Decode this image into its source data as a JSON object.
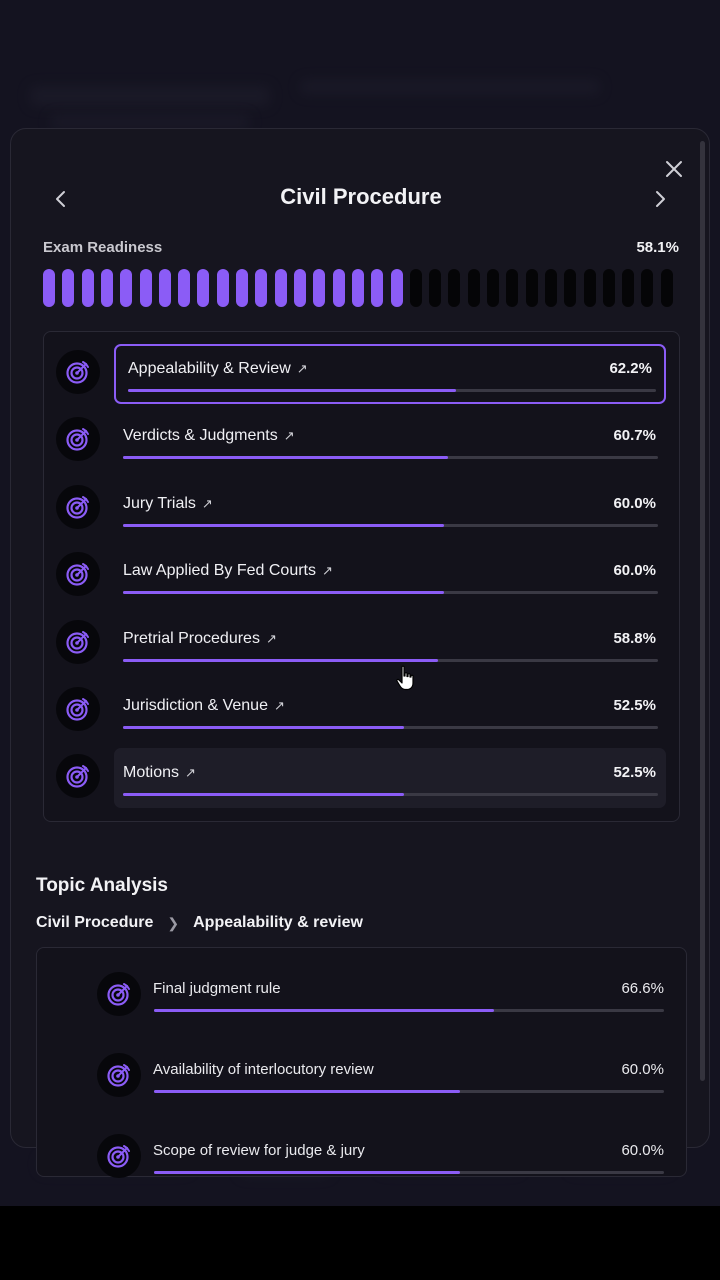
{
  "colors": {
    "accent": "#8b5cf6",
    "background": "#16151f",
    "track": "#3a3944"
  },
  "modal": {
    "title": "Civil Procedure",
    "prev_icon": "chevron-left-icon",
    "next_icon": "chevron-right-icon",
    "close_icon": "close-icon"
  },
  "readiness": {
    "label": "Exam Readiness",
    "value": "58.1%",
    "percent": 58.1,
    "segments_total": 33,
    "segments_filled": 19
  },
  "subtopics": [
    {
      "label": "Appealability & Review",
      "value": "62.2%",
      "percent": 62.2,
      "state": "selected"
    },
    {
      "label": "Verdicts & Judgments",
      "value": "60.7%",
      "percent": 60.7,
      "state": "normal"
    },
    {
      "label": "Jury Trials",
      "value": "60.0%",
      "percent": 60.0,
      "state": "normal"
    },
    {
      "label": "Law Applied By Fed Courts",
      "value": "60.0%",
      "percent": 60.0,
      "state": "normal"
    },
    {
      "label": "Pretrial Procedures",
      "value": "58.8%",
      "percent": 58.8,
      "state": "normal"
    },
    {
      "label": "Jurisdiction & Venue",
      "value": "52.5%",
      "percent": 52.5,
      "state": "normal"
    },
    {
      "label": "Motions",
      "value": "52.5%",
      "percent": 52.5,
      "state": "hovered"
    }
  ],
  "analysis": {
    "title": "Topic Analysis",
    "breadcrumb": {
      "root": "Civil Procedure",
      "current": "Appealability & review"
    },
    "topics": [
      {
        "label": "Final judgment rule",
        "value": "66.6%",
        "percent": 66.6
      },
      {
        "label": "Availability of interlocutory review",
        "value": "60.0%",
        "percent": 60.0
      },
      {
        "label": "Scope of review for judge & jury",
        "value": "60.0%",
        "percent": 60.0
      }
    ]
  }
}
